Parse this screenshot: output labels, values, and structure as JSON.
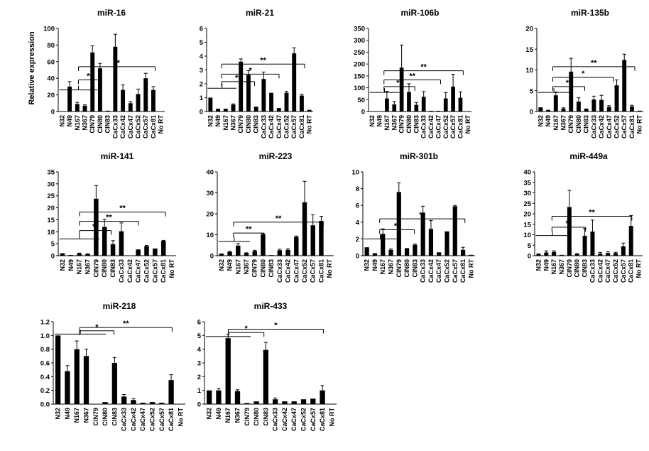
{
  "ylabel": "Relative expression",
  "sig_double": "**",
  "sig_single": "*",
  "chart_data": [
    {
      "type": "bar",
      "title": "miR-16",
      "ylim": [
        0,
        100
      ],
      "ticks": [
        0,
        20,
        40,
        60,
        80,
        100
      ],
      "categories": [
        "N32",
        "N49",
        "N167",
        "N367",
        "CIN79",
        "CIN80",
        "CIN83",
        "CaCx33",
        "CaCx42",
        "CaCx47",
        "CaCx52",
        "CaCx57",
        "CaCx81",
        "No RT"
      ],
      "values": [
        0,
        30,
        9,
        7,
        71,
        52,
        1,
        78,
        26,
        10,
        21,
        40,
        26,
        0
      ],
      "errors": [
        0,
        6,
        2,
        1,
        8,
        6,
        0,
        15,
        6,
        2,
        6,
        6,
        4,
        0
      ]
    },
    {
      "type": "bar",
      "title": "miR-21",
      "ylim": [
        0,
        6
      ],
      "ticks": [
        0,
        1,
        2,
        3,
        4,
        5,
        6
      ],
      "categories": [
        "N32",
        "N49",
        "N167",
        "N367",
        "CIN79",
        "CIN80",
        "CIN83",
        "CaCx33",
        "CaCx42",
        "CaCx47",
        "CaCx52",
        "CaCx57",
        "CaCx81",
        "No RT"
      ],
      "values": [
        1.0,
        0.2,
        0.2,
        0.5,
        3.6,
        2.65,
        0.35,
        2.35,
        1.35,
        0.25,
        1.35,
        4.2,
        1.15,
        0.12
      ],
      "errors": [
        0,
        0,
        0,
        0.05,
        0.2,
        0.3,
        0,
        0.5,
        0,
        0,
        0.1,
        0.4,
        0.1,
        0
      ]
    },
    {
      "type": "bar",
      "title": "miR-106b",
      "ylim": [
        0,
        350
      ],
      "ticks": [
        0,
        50,
        100,
        150,
        200,
        250,
        300,
        350
      ],
      "categories": [
        "N32",
        "N49",
        "N167",
        "N367",
        "CIN79",
        "CIN80",
        "CIN83",
        "CaCx33",
        "CaCx42",
        "CaCx47",
        "CaCx52",
        "CaCx57",
        "CaCx81",
        "No RT"
      ],
      "values": [
        0,
        0,
        55,
        30,
        185,
        82,
        28,
        62,
        3,
        3,
        55,
        105,
        58,
        0
      ],
      "errors": [
        0,
        0,
        30,
        12,
        95,
        35,
        10,
        22,
        0,
        0,
        25,
        52,
        25,
        0
      ]
    },
    {
      "type": "bar",
      "title": "miR-135b",
      "ylim": [
        0,
        20
      ],
      "ticks": [
        0,
        5,
        10,
        15,
        20
      ],
      "categories": [
        "N32",
        "N49",
        "N167",
        "N367",
        "CIN79",
        "CIN80",
        "CIN83",
        "CaCx33",
        "CaCx42",
        "CaCx47",
        "CaCx52",
        "CaCx57",
        "CaCx81",
        "No RT"
      ],
      "values": [
        1.0,
        0.4,
        3.9,
        0.7,
        9.6,
        2.4,
        0.7,
        2.9,
        2.8,
        1.1,
        6.3,
        12.4,
        1.2,
        0.2
      ],
      "errors": [
        0,
        0,
        0.8,
        0.2,
        3.2,
        0.9,
        0,
        0.8,
        1.1,
        0.3,
        1.3,
        1.4,
        0.3,
        0
      ]
    },
    {
      "type": "bar",
      "title": "miR-141",
      "ylim": [
        0,
        35
      ],
      "ticks": [
        0,
        5,
        10,
        15,
        20,
        25,
        30,
        35
      ],
      "categories": [
        "N32",
        "N49",
        "N167",
        "N367",
        "CIN79",
        "CIN80",
        "CIN83",
        "CaCx33",
        "CaCx42",
        "CaCx47",
        "CaCx52",
        "CaCx57",
        "CaCx81",
        "No RT"
      ],
      "values": [
        1.0,
        0.3,
        0.9,
        0.7,
        23.8,
        12.0,
        4.8,
        10.2,
        0.1,
        2.6,
        4.0,
        3.0,
        6.2,
        0.1
      ],
      "errors": [
        0,
        0,
        0.2,
        0.1,
        5.5,
        3.2,
        1.5,
        3.5,
        0,
        0,
        0.3,
        0,
        0.2,
        0
      ]
    },
    {
      "type": "bar",
      "title": "miR-223",
      "ylim": [
        0,
        40
      ],
      "ticks": [
        0,
        10,
        20,
        30,
        40
      ],
      "categories": [
        "N32",
        "N49",
        "N167",
        "N367",
        "CIN79",
        "CIN80",
        "CIN83",
        "CaCx33",
        "CaCx42",
        "CaCx47",
        "CaCx52",
        "CaCx57",
        "CaCx81",
        "No RT"
      ],
      "values": [
        1.0,
        1.8,
        4.8,
        1.2,
        2.2,
        10.2,
        0.3,
        2.6,
        2.8,
        9.0,
        25.5,
        14.5,
        16.6,
        0.2
      ],
      "errors": [
        0,
        0.3,
        1.0,
        0.2,
        0.4,
        0.4,
        0,
        0.5,
        0.5,
        0.4,
        10.0,
        5.0,
        2.2,
        0
      ]
    },
    {
      "type": "bar",
      "title": "miR-301b",
      "ylim": [
        0,
        10
      ],
      "ticks": [
        0,
        2,
        4,
        6,
        8,
        10
      ],
      "categories": [
        "N32",
        "N49",
        "N167",
        "N367",
        "CIN79",
        "CIN80",
        "CIN83",
        "CaCx33",
        "CaCx42",
        "CaCx47",
        "CaCx52",
        "CaCx57",
        "CaCx81",
        "No RT"
      ],
      "values": [
        1.0,
        0.3,
        2.6,
        0.7,
        7.6,
        0.9,
        1.3,
        5.1,
        3.2,
        0.4,
        2.9,
        5.9,
        0.7,
        0.1
      ],
      "errors": [
        0,
        0,
        0.6,
        0.1,
        1.1,
        0,
        0.1,
        0.8,
        1.0,
        0,
        0,
        0.1,
        0.3,
        0
      ]
    },
    {
      "type": "bar",
      "title": "miR-449a",
      "ylim": [
        0,
        40
      ],
      "ticks": [
        0,
        5,
        10,
        15,
        20,
        25,
        30,
        35,
        40
      ],
      "categories": [
        "N32",
        "N49",
        "N167",
        "N367",
        "CIN79",
        "CIN80",
        "CIN83",
        "CaCx33",
        "CaCx42",
        "CaCx47",
        "CaCx52",
        "CaCx57",
        "CaCx81",
        "No RT"
      ],
      "values": [
        1.0,
        1.5,
        1.8,
        0.4,
        23.2,
        0.8,
        9.5,
        11.5,
        1.0,
        1.3,
        1.2,
        4.5,
        14.2,
        0
      ],
      "errors": [
        0,
        0.8,
        0.5,
        0,
        8.0,
        0.2,
        3.5,
        5.5,
        0.6,
        0.6,
        0.4,
        1.5,
        5.0,
        0
      ]
    },
    {
      "type": "bar",
      "title": "miR-218",
      "ylim": [
        0,
        1.2
      ],
      "ticks": [
        0.0,
        0.2,
        0.4,
        0.6,
        0.8,
        1.0,
        1.2
      ],
      "categories": [
        "N32",
        "N49",
        "N167",
        "N367",
        "CIN79",
        "CIN80",
        "CIN83",
        "CaCx33",
        "CaCx42",
        "CaCx47",
        "CaCx52",
        "CaCx57",
        "CaCx81",
        "No RT"
      ],
      "values": [
        1.0,
        0.48,
        0.8,
        0.7,
        0,
        0.03,
        0.6,
        0.11,
        0.06,
        0.02,
        0.03,
        0.02,
        0.35,
        0
      ],
      "errors": [
        0,
        0.08,
        0.12,
        0.1,
        0,
        0,
        0.08,
        0.03,
        0.02,
        0,
        0,
        0,
        0.08,
        0
      ]
    },
    {
      "type": "bar",
      "title": "miR-433",
      "ylim": [
        0,
        6
      ],
      "ticks": [
        0,
        1,
        2,
        3,
        4,
        5,
        6
      ],
      "categories": [
        "N32",
        "N49",
        "N167",
        "N367",
        "CIN79",
        "CIN80",
        "CIN83",
        "CaCx33",
        "CaCx42",
        "CaCx47",
        "CaCx52",
        "CaCx57",
        "CaCx81",
        "No RT"
      ],
      "values": [
        1.0,
        1.0,
        4.8,
        0.95,
        0.08,
        0.2,
        3.95,
        0.35,
        0.2,
        0.2,
        0.35,
        0.4,
        1.0,
        0
      ],
      "errors": [
        0,
        0.15,
        0.3,
        0.1,
        0,
        0,
        0.55,
        0.1,
        0,
        0,
        0,
        0,
        0.35,
        0
      ]
    }
  ]
}
